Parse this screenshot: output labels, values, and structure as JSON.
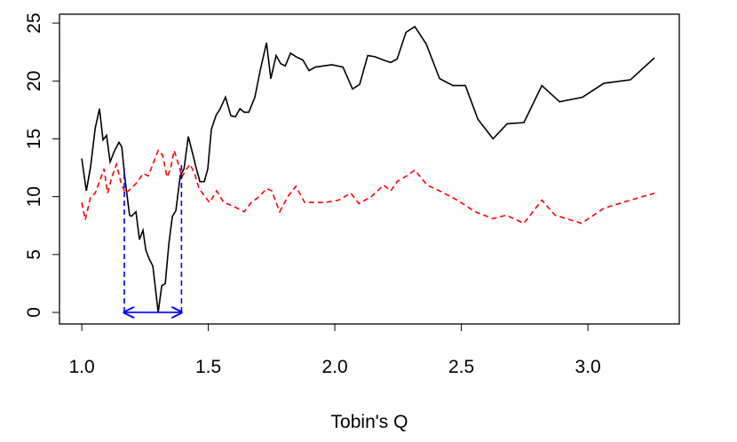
{
  "chart_data": {
    "type": "line",
    "xlabel": "Tobin's Q",
    "xlim": [
      0.912,
      3.361
    ],
    "ylim": [
      -1.0,
      25.77
    ],
    "xticks": [
      {
        "value": 1,
        "label": "1.0"
      },
      {
        "value": 1.5,
        "label": "1.5"
      },
      {
        "value": 2,
        "label": "2.0"
      },
      {
        "value": 2.5,
        "label": "2.5"
      },
      {
        "value": 3,
        "label": "3.0"
      }
    ],
    "yticks": [
      0,
      5,
      10,
      15,
      20,
      25
    ],
    "series": [
      {
        "color": "#000000",
        "dash": false,
        "x": [
          1.0,
          1.018,
          1.035,
          1.053,
          1.07,
          1.084,
          1.098,
          1.112,
          1.13,
          1.147,
          1.158,
          1.172,
          1.189,
          1.196,
          1.214,
          1.228,
          1.242,
          1.253,
          1.267,
          1.281,
          1.302,
          1.316,
          1.33,
          1.344,
          1.358,
          1.372,
          1.389,
          1.404,
          1.421,
          1.435,
          1.453,
          1.467,
          1.484,
          1.498,
          1.512,
          1.53,
          1.547,
          1.568,
          1.589,
          1.607,
          1.625,
          1.642,
          1.66,
          1.684,
          1.705,
          1.73,
          1.747,
          1.768,
          1.786,
          1.804,
          1.825,
          1.846,
          1.874,
          1.898,
          1.923,
          1.954,
          1.989,
          2.032,
          2.07,
          2.098,
          2.13,
          2.158,
          2.193,
          2.221,
          2.246,
          2.281,
          2.316,
          2.361,
          2.414,
          2.467,
          2.516,
          2.565,
          2.625,
          2.681,
          2.747,
          2.818,
          2.888,
          2.979,
          3.063,
          3.168,
          3.263
        ],
        "values": [
          13.3,
          10.5,
          12.6,
          15.9,
          17.6,
          14.9,
          15.3,
          13.0,
          14.0,
          14.7,
          14.3,
          11.3,
          8.4,
          8.3,
          8.7,
          6.3,
          7.1,
          5.4,
          4.6,
          4.0,
          0,
          2.3,
          2.5,
          5.9,
          8.3,
          8.8,
          11.8,
          12.4,
          15.2,
          14.0,
          12.4,
          11.3,
          11.3,
          12.4,
          15.8,
          17.0,
          17.6,
          18.6,
          17.0,
          16.9,
          17.6,
          17.3,
          17.3,
          18.6,
          20.9,
          23.3,
          20.2,
          22.2,
          21.5,
          21.3,
          22.4,
          22.1,
          21.8,
          20.9,
          21.2,
          21.3,
          21.4,
          21.2,
          19.3,
          19.7,
          22.2,
          22.1,
          21.8,
          21.6,
          21.9,
          24.2,
          24.7,
          23.2,
          20.2,
          19.6,
          19.6,
          16.7,
          15.0,
          16.3,
          16.4,
          19.6,
          18.2,
          18.6,
          19.8,
          20.1,
          22.0
        ]
      },
      {
        "color": "#ff0000",
        "dash": true,
        "x": [
          1.0,
          1.014,
          1.035,
          1.053,
          1.07,
          1.088,
          1.102,
          1.119,
          1.137,
          1.154,
          1.172,
          1.196,
          1.221,
          1.242,
          1.263,
          1.281,
          1.302,
          1.319,
          1.337,
          1.351,
          1.365,
          1.382,
          1.396,
          1.411,
          1.428,
          1.446,
          1.463,
          1.484,
          1.505,
          1.533,
          1.561,
          1.596,
          1.642,
          1.67,
          1.702,
          1.73,
          1.751,
          1.782,
          1.814,
          1.846,
          1.881,
          1.916,
          1.961,
          2.014,
          2.063,
          2.095,
          2.144,
          2.193,
          2.221,
          2.246,
          2.284,
          2.316,
          2.365,
          2.414,
          2.484,
          2.554,
          2.625,
          2.677,
          2.747,
          2.818,
          2.87,
          2.975,
          3.063,
          3.168,
          3.263
        ],
        "values": [
          9.5,
          8.0,
          10.0,
          10.3,
          11.3,
          12.4,
          10.3,
          11.7,
          12.8,
          11.3,
          10.3,
          10.7,
          11.3,
          12.0,
          11.8,
          12.8,
          14.0,
          13.6,
          11.7,
          12.4,
          14.0,
          12.8,
          11.7,
          12.3,
          12.8,
          12.0,
          10.7,
          10.1,
          9.5,
          10.5,
          9.5,
          9.2,
          8.7,
          9.5,
          10.0,
          10.7,
          10.5,
          8.7,
          10.0,
          10.9,
          9.5,
          9.5,
          9.5,
          9.7,
          10.3,
          9.4,
          10.0,
          11.0,
          10.5,
          11.3,
          11.8,
          12.3,
          11.0,
          10.5,
          9.7,
          8.7,
          8.1,
          8.4,
          7.7,
          9.7,
          8.4,
          7.7,
          9.0,
          9.7,
          10.3
        ]
      }
    ],
    "bracket": {
      "x": [
        1.168,
        1.394
      ],
      "y": [
        12.4,
        13.0
      ],
      "arrow_y": 0,
      "color": "#0000ff"
    }
  }
}
